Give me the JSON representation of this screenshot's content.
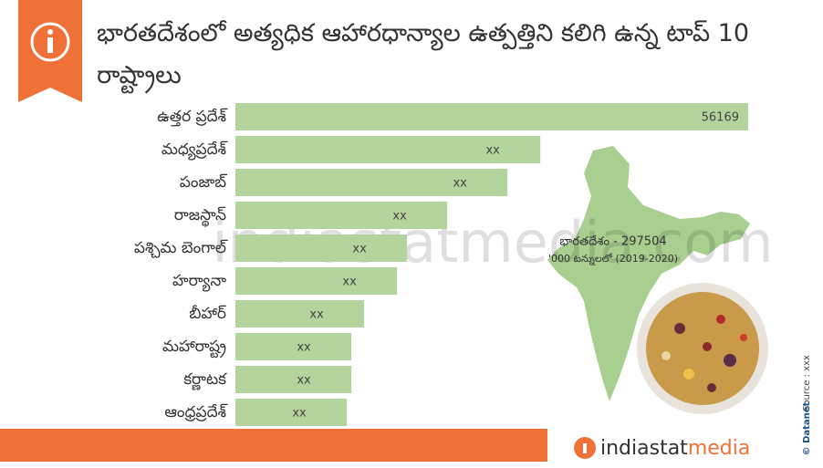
{
  "chart_data": {
    "type": "bar",
    "orientation": "horizontal",
    "title": "భారతదేశంలో అత్యధిక ఆహారధాన్యాల ఉత్పత్తిని కలిగి ఉన్న టాప్ 10 రాష్ట్రాలు",
    "categories": [
      "ఉత్తర ప్రదేశ్",
      "మధ్యప్రదేశ్",
      "పంజాబ్",
      "రాజస్థాన్",
      "పశ్చిమ బెంగాల్",
      "హర్యానా",
      "బీహార్",
      "మహారాష్ట్ర",
      "కర్ణాటక",
      "ఆంధ్రప్రదేశ్"
    ],
    "values": [
      56169,
      33400,
      29800,
      23200,
      18800,
      17700,
      14100,
      12700,
      12700,
      12200
    ],
    "value_labels": [
      "56169",
      "xx",
      "xx",
      "xx",
      "xx",
      "xx",
      "xx",
      "xx",
      "xx",
      "xx"
    ],
    "color": "#b3d49c",
    "annotations": [
      "భారతదేశం - 297504",
      "'000 టన్నులలో (2019-2020)"
    ]
  },
  "watermark": "indiastatmedia.com",
  "source": "Source : xxx",
  "credit": "© Datanet",
  "footer": {
    "brand_left": "indiastat",
    "brand_right": "media"
  }
}
